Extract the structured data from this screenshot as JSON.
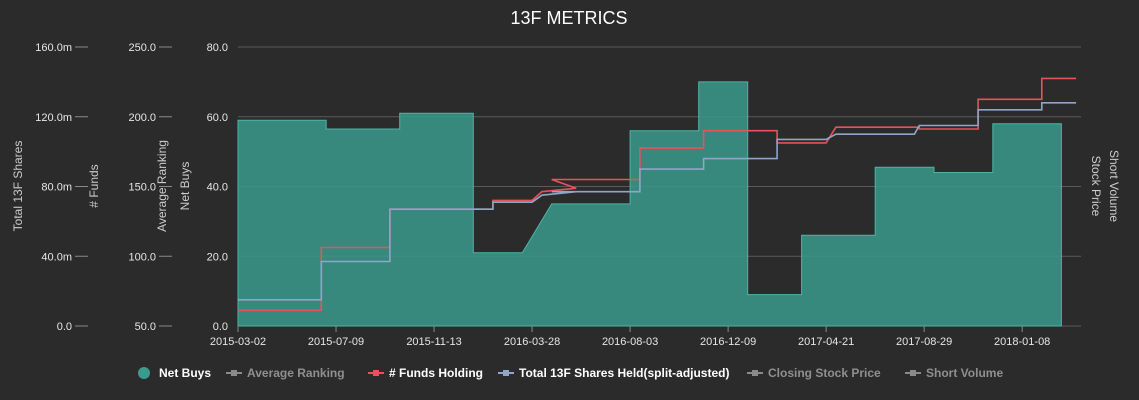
{
  "chart_data": {
    "type": "area",
    "title": "13F METRICS",
    "x_categories": [
      "2015-03-02",
      "2015-07-09",
      "2015-11-13",
      "2016-03-28",
      "2016-08-03",
      "2016-12-09",
      "2017-04-21",
      "2017-08-29",
      "2018-01-08"
    ],
    "y_axes": [
      {
        "id": "net_buys",
        "label": "Net Buys",
        "range": [
          0,
          80
        ],
        "ticks": [
          "0.0",
          "20.0",
          "40.0",
          "60.0",
          "80.0"
        ]
      },
      {
        "id": "avg_rank",
        "label": "Average Ranking",
        "range": [
          50,
          250
        ],
        "ticks": [
          "50.0",
          "100.0",
          "150.0",
          "200.0",
          "250.0"
        ]
      },
      {
        "id": "funds",
        "label": "# Funds",
        "range": [
          0,
          0
        ],
        "ticks": []
      },
      {
        "id": "total_shares",
        "label": "Total 13F Shares",
        "range": [
          0,
          160
        ],
        "ticks": [
          "0.0",
          "40.0m",
          "80.0m",
          "120.0m",
          "160.0m"
        ]
      },
      {
        "id": "right_labels",
        "labels": [
          "Short Volume",
          "Stock Price"
        ]
      }
    ],
    "grid": true,
    "legend_position": "bottom",
    "legend": [
      {
        "label": "Net Buys",
        "color": "#3a9a8c",
        "enabled": true
      },
      {
        "label": "Average Ranking",
        "color": "#9a9a9a",
        "enabled": false
      },
      {
        "label": "# Funds Holding",
        "color": "#e8525a",
        "enabled": true
      },
      {
        "label": "Total 13F Shares Held(split-adjusted)",
        "color": "#8ea6c8",
        "enabled": true
      },
      {
        "label": "Closing Stock Price",
        "color": "#9a9a9a",
        "enabled": false
      },
      {
        "label": "Short Volume",
        "color": "#9a9a9a",
        "enabled": false
      }
    ],
    "series": [
      {
        "name": "Net Buys",
        "kind": "area",
        "color": "#3a9a8c",
        "points": [
          [
            0,
            59
          ],
          [
            0.9,
            59
          ],
          [
            0.9,
            56.5
          ],
          [
            1.65,
            56.5
          ],
          [
            1.65,
            61
          ],
          [
            2.4,
            61
          ],
          [
            2.4,
            21
          ],
          [
            2.9,
            21
          ],
          [
            3.2,
            35
          ],
          [
            3.6,
            35
          ],
          [
            4.0,
            35
          ],
          [
            4.0,
            56
          ],
          [
            4.7,
            56
          ],
          [
            4.7,
            70
          ],
          [
            5.2,
            70
          ],
          [
            5.2,
            9
          ],
          [
            5.75,
            9
          ],
          [
            5.75,
            26
          ],
          [
            6.5,
            26
          ],
          [
            6.5,
            45.5
          ],
          [
            7.1,
            45.5
          ],
          [
            7.1,
            44
          ],
          [
            7.7,
            44
          ],
          [
            7.7,
            58
          ],
          [
            8.4,
            58
          ]
        ]
      },
      {
        "name": "# Funds Holding",
        "kind": "line",
        "color": "#e8525a",
        "points": [
          [
            0,
            4.5
          ],
          [
            0.85,
            4.5
          ],
          [
            0.85,
            22.5
          ],
          [
            1.55,
            22.5
          ],
          [
            1.55,
            33.5
          ],
          [
            2.6,
            33.5
          ],
          [
            2.6,
            36
          ],
          [
            3.0,
            36
          ],
          [
            3.1,
            38.5
          ],
          [
            3.45,
            39.5
          ],
          [
            3.2,
            42
          ],
          [
            4.1,
            42
          ],
          [
            4.1,
            51
          ],
          [
            4.75,
            51
          ],
          [
            4.75,
            56
          ],
          [
            5.5,
            56
          ],
          [
            5.5,
            52.5
          ],
          [
            6.0,
            52.5
          ],
          [
            6.1,
            57
          ],
          [
            6.9,
            57
          ],
          [
            6.95,
            57
          ],
          [
            6.95,
            56.5
          ],
          [
            7.55,
            56.5
          ],
          [
            7.55,
            65
          ],
          [
            8.2,
            65
          ],
          [
            8.2,
            71
          ],
          [
            8.55,
            71
          ]
        ]
      },
      {
        "name": "Total 13F Shares Held(split-adjusted)",
        "kind": "line",
        "color": "#8ea6c8",
        "points": [
          [
            0,
            7.5
          ],
          [
            0.85,
            7.5
          ],
          [
            0.85,
            18.5
          ],
          [
            1.55,
            18.5
          ],
          [
            1.55,
            33.5
          ],
          [
            2.6,
            33.5
          ],
          [
            2.6,
            35.5
          ],
          [
            3.0,
            35.5
          ],
          [
            3.1,
            37.5
          ],
          [
            3.45,
            38.5
          ],
          [
            3.2,
            38.5
          ],
          [
            4.1,
            38.5
          ],
          [
            4.1,
            45
          ],
          [
            4.75,
            45
          ],
          [
            4.75,
            48
          ],
          [
            5.5,
            48
          ],
          [
            5.5,
            53.5
          ],
          [
            6.0,
            53.5
          ],
          [
            6.1,
            55
          ],
          [
            6.9,
            55
          ],
          [
            6.95,
            57.5
          ],
          [
            7.55,
            57.5
          ],
          [
            7.55,
            62
          ],
          [
            8.2,
            62
          ],
          [
            8.2,
            64
          ],
          [
            8.55,
            64
          ]
        ]
      }
    ]
  }
}
